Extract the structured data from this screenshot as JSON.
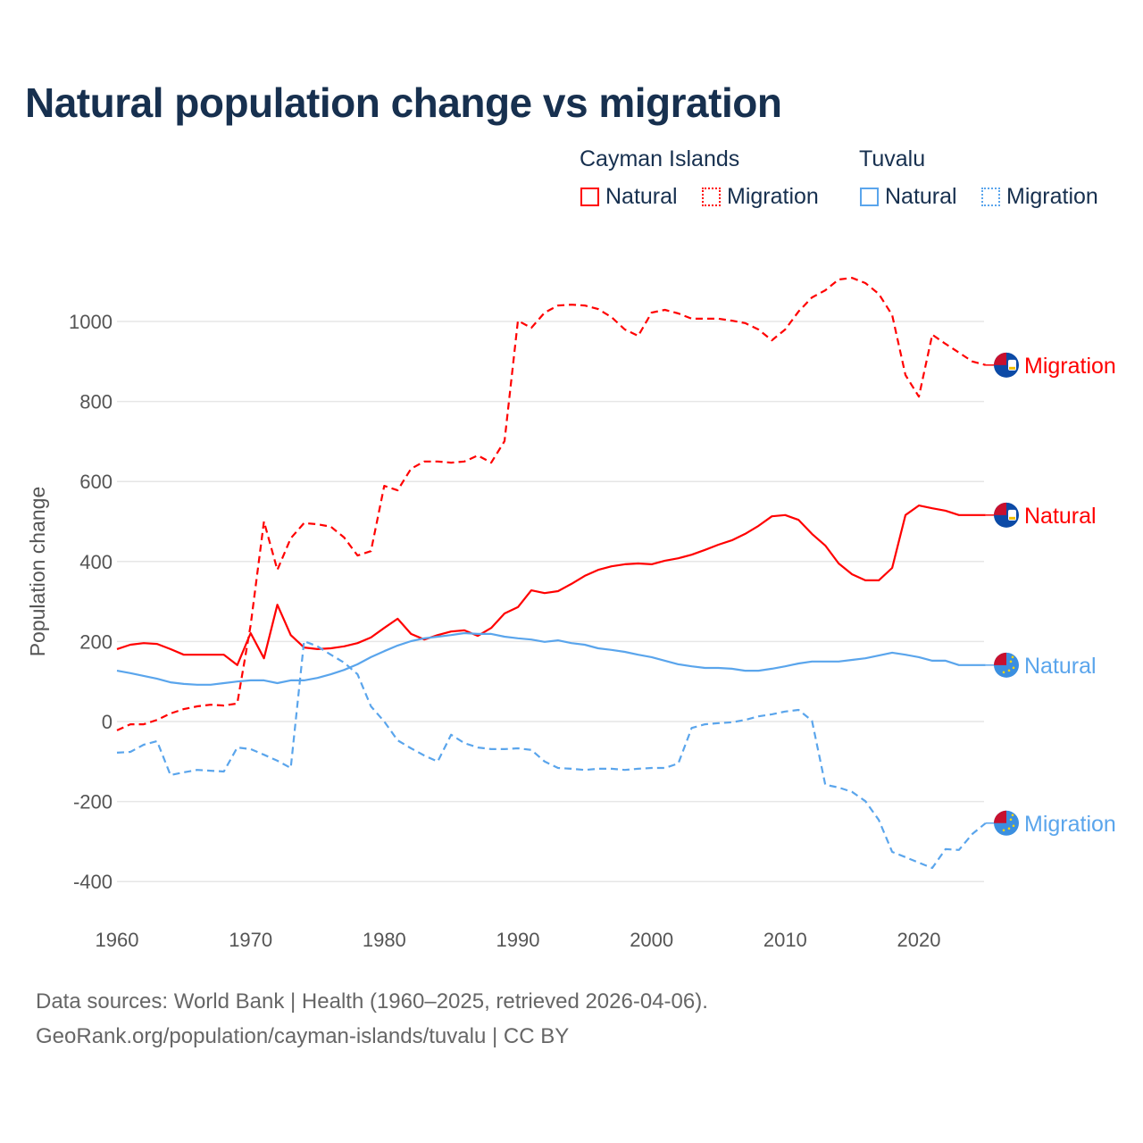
{
  "title": "Natural population change vs migration",
  "legend": {
    "groups": [
      {
        "name": "Cayman Islands",
        "color": "#ff0000",
        "items": [
          "Natural",
          "Migration"
        ]
      },
      {
        "name": "Tuvalu",
        "color": "#5aa5ec",
        "items": [
          "Natural",
          "Migration"
        ]
      }
    ]
  },
  "source": {
    "line1": "Data sources: World Bank | Health (1960–2025, retrieved 2026-04-06).",
    "line2": "GeoRank.org/population/cayman-islands/tuvalu | CC BY"
  },
  "chart_data": {
    "type": "line",
    "title": "Natural population change vs migration",
    "xlabel": "",
    "ylabel": "Population change",
    "xlim": [
      1960,
      2025
    ],
    "ylim": [
      -500,
      1150
    ],
    "xticks": [
      1960,
      1970,
      1980,
      1990,
      2000,
      2010,
      2020
    ],
    "yticks": [
      -400,
      -200,
      0,
      200,
      400,
      600,
      800,
      1000
    ],
    "grid": true,
    "x_start": 1960,
    "series": [
      {
        "name": "Cayman Islands Migration",
        "end_label": "Migration",
        "country": "Cayman Islands",
        "color": "#ff0000",
        "dash": true,
        "values": [
          -22,
          -7,
          -7,
          4,
          20,
          31,
          38,
          42,
          40,
          45,
          241,
          500,
          379,
          458,
          496,
          493,
          487,
          460,
          415,
          426,
          589,
          578,
          632,
          650,
          650,
          647,
          650,
          665,
          647,
          701,
          1002,
          984,
          1022,
          1040,
          1042,
          1040,
          1031,
          1011,
          980,
          964,
          1022,
          1029,
          1020,
          1007,
          1007,
          1007,
          1002,
          996,
          980,
          953,
          980,
          1025,
          1060,
          1078,
          1105,
          1109,
          1096,
          1069,
          1016,
          866,
          812,
          967,
          944,
          922,
          900,
          891
        ]
      },
      {
        "name": "Cayman Islands Natural",
        "end_label": "Natural",
        "country": "Cayman Islands",
        "color": "#ff0000",
        "dash": false,
        "values": [
          181,
          192,
          196,
          194,
          181,
          167,
          167,
          167,
          167,
          141,
          221,
          158,
          292,
          216,
          185,
          181,
          183,
          188,
          196,
          210,
          234,
          257,
          219,
          205,
          216,
          225,
          228,
          214,
          234,
          270,
          286,
          328,
          321,
          326,
          344,
          364,
          379,
          388,
          393,
          395,
          393,
          402,
          408,
          417,
          429,
          442,
          453,
          469,
          489,
          513,
          516,
          504,
          469,
          440,
          395,
          368,
          353,
          353,
          384,
          516,
          540,
          533,
          527,
          516,
          516,
          516
        ]
      },
      {
        "name": "Tuvalu Natural",
        "end_label": "Natural",
        "country": "Tuvalu",
        "color": "#5aa5ec",
        "dash": false,
        "values": [
          127,
          121,
          114,
          107,
          98,
          94,
          92,
          92,
          96,
          100,
          103,
          103,
          96,
          103,
          103,
          109,
          118,
          129,
          143,
          161,
          176,
          190,
          201,
          208,
          212,
          216,
          221,
          219,
          219,
          212,
          208,
          205,
          199,
          203,
          196,
          192,
          183,
          179,
          174,
          167,
          161,
          152,
          143,
          138,
          134,
          134,
          132,
          127,
          127,
          132,
          138,
          145,
          150,
          150,
          150,
          154,
          158,
          165,
          172,
          167,
          161,
          152,
          152,
          141,
          141,
          141
        ]
      },
      {
        "name": "Tuvalu Migration",
        "end_label": "Migration",
        "country": "Tuvalu",
        "color": "#5aa5ec",
        "dash": true,
        "values": [
          -78,
          -76,
          -58,
          -49,
          -134,
          -127,
          -121,
          -123,
          -125,
          -65,
          -69,
          -83,
          -98,
          -116,
          201,
          188,
          167,
          147,
          118,
          38,
          0,
          -47,
          -67,
          -85,
          -100,
          -33,
          -54,
          -65,
          -69,
          -69,
          -67,
          -71,
          -100,
          -116,
          -118,
          -121,
          -118,
          -118,
          -121,
          -118,
          -116,
          -116,
          -105,
          -16,
          -7,
          -4,
          -2,
          4,
          13,
          18,
          25,
          29,
          2,
          -158,
          -165,
          -176,
          -199,
          -246,
          -326,
          -339,
          -353,
          -366,
          -319,
          -321,
          -281,
          -254
        ]
      }
    ]
  }
}
